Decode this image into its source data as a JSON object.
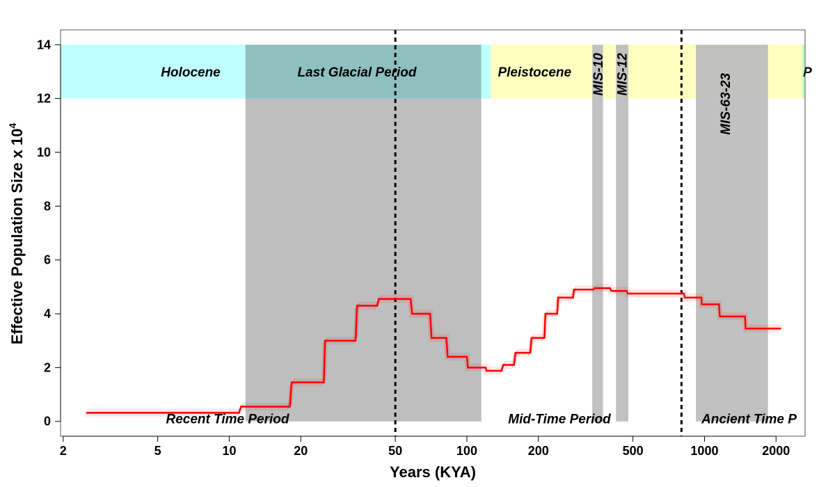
{
  "chart_data": {
    "type": "line",
    "xlabel": "Years (KYA)",
    "ylabel": "Effective Population Size x 10",
    "ylabel_superscript": "4",
    "x_scale": "log",
    "xlim": [
      1.95,
      2650
    ],
    "ylim": [
      -0.55,
      14.55
    ],
    "x_ticks": [
      2,
      5,
      10,
      20,
      50,
      100,
      200,
      500,
      1000,
      2000
    ],
    "x_tick_labels": [
      "2",
      "5",
      "10",
      "20",
      "50",
      "100",
      "200",
      "500",
      "1000",
      "2000"
    ],
    "y_ticks": [
      0,
      2,
      4,
      6,
      8,
      10,
      12,
      14
    ],
    "y_tick_labels": [
      "0",
      "2",
      "4",
      "6",
      "8",
      "10",
      "12",
      "14"
    ],
    "grid": false,
    "epoch_bands": [
      {
        "name": "Holocene",
        "x0": 1.95,
        "x1": 11.7,
        "color": "#c0ffff",
        "label_x": 5.4
      },
      {
        "name": "Last Glacial Period",
        "x0": 11.7,
        "x1": 115,
        "color": "#8fbfbf",
        "label_x": 37
      },
      {
        "name": "",
        "x0": 115,
        "x1": 126,
        "color": "#c0ffff"
      },
      {
        "name": "Pleistocene",
        "x0": 126,
        "x1": 2580,
        "color": "#ffffc0",
        "label_x": 135
      },
      {
        "name": "P",
        "x0": 2580,
        "x1": 2650,
        "color": "#c0ffc0",
        "label_x": 2600
      }
    ],
    "gray_regions": [
      {
        "name": "",
        "x0": 11.7,
        "x1": 115,
        "label_rotated": false
      },
      {
        "name": "MIS-10",
        "x0": 337,
        "x1": 374,
        "label_rotated": true,
        "label_x": 355
      },
      {
        "name": "MIS-12",
        "x0": 424,
        "x1": 478,
        "label_rotated": true,
        "label_x": 449
      },
      {
        "name": "MIS-63-23",
        "x0": 920,
        "x1": 1850,
        "label_rotated": true,
        "label_x": 1220
      }
    ],
    "gray_color": "#bebebe",
    "dashed_lines_x": [
      50,
      800
    ],
    "period_labels": [
      {
        "text": "Recent Time Period",
        "x": 10.5
      },
      {
        "text": "Mid-Time Period",
        "x": 260
      },
      {
        "text": "Ancient Time P",
        "x": 1750
      }
    ],
    "series": [
      {
        "color": "#ff0000",
        "x": [
          2.5,
          11,
          11.2,
          18,
          18.3,
          25,
          25.3,
          34,
          34.5,
          42,
          42.5,
          58,
          58.8,
          70,
          71,
          82,
          83,
          100,
          101,
          120,
          121,
          140,
          142,
          158,
          160,
          185,
          187,
          212,
          214,
          240,
          242,
          280,
          282,
          340,
          345,
          400,
          405,
          470,
          475,
          820,
          825,
          970,
          975,
          1150,
          1160,
          1480,
          1490,
          2050,
          2100
        ],
        "values": [
          0.32,
          0.32,
          0.55,
          0.55,
          1.45,
          1.45,
          3.0,
          3.0,
          4.3,
          4.3,
          4.55,
          4.55,
          4.0,
          4.0,
          3.1,
          3.1,
          2.4,
          2.4,
          2.0,
          2.0,
          1.88,
          1.88,
          2.1,
          2.1,
          2.55,
          2.55,
          3.1,
          3.1,
          4.0,
          4.0,
          4.6,
          4.6,
          4.9,
          4.9,
          4.95,
          4.95,
          4.85,
          4.85,
          4.75,
          4.75,
          4.6,
          4.6,
          4.35,
          4.35,
          3.9,
          3.9,
          3.45,
          3.45,
          3.45
        ]
      }
    ]
  }
}
